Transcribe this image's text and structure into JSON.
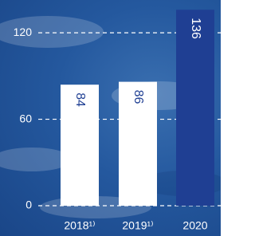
{
  "chart_data": {
    "type": "bar",
    "categories": [
      "2018¹⁾",
      "2019¹⁾",
      "2020"
    ],
    "values": [
      84,
      86,
      136
    ],
    "colors": [
      "#ffffff",
      "#ffffff",
      "#1f3f93"
    ],
    "label_colors": [
      "#1f3f93",
      "#1f3f93",
      "#ffffff"
    ],
    "ylim": [
      0,
      140
    ],
    "yticks": [
      0,
      60,
      120
    ],
    "grid": true
  }
}
